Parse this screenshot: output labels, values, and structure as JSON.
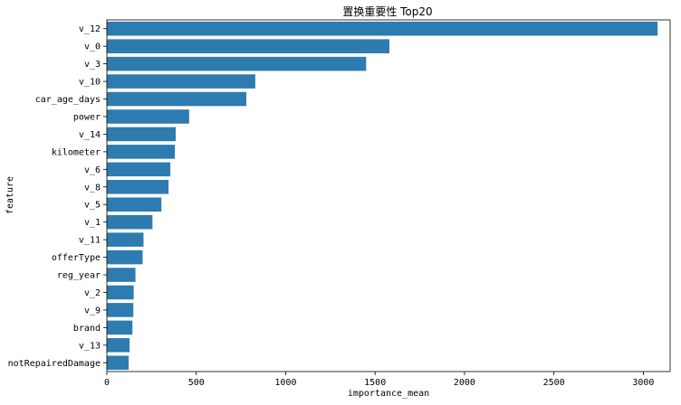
{
  "chart_data": {
    "type": "bar",
    "orientation": "horizontal",
    "title": "置换重要性 Top20",
    "xlabel": "importance_mean",
    "ylabel": "feature",
    "xlim": [
      0,
      3150
    ],
    "xticks": [
      0,
      500,
      1000,
      1500,
      2000,
      2500,
      3000
    ],
    "grid": false,
    "bar_color": "#2e7bb0",
    "categories": [
      "v_12",
      "v_0",
      "v_3",
      "v_10",
      "car_age_days",
      "power",
      "v_14",
      "kilometer",
      "v_6",
      "v_8",
      "v_5",
      "v_1",
      "v_11",
      "offerType",
      "reg_year",
      "v_2",
      "v_9",
      "brand",
      "v_13",
      "notRepairedDamage"
    ],
    "values": [
      3080,
      1580,
      1450,
      830,
      780,
      460,
      385,
      380,
      355,
      345,
      305,
      255,
      205,
      200,
      160,
      150,
      148,
      143,
      127,
      122
    ]
  }
}
